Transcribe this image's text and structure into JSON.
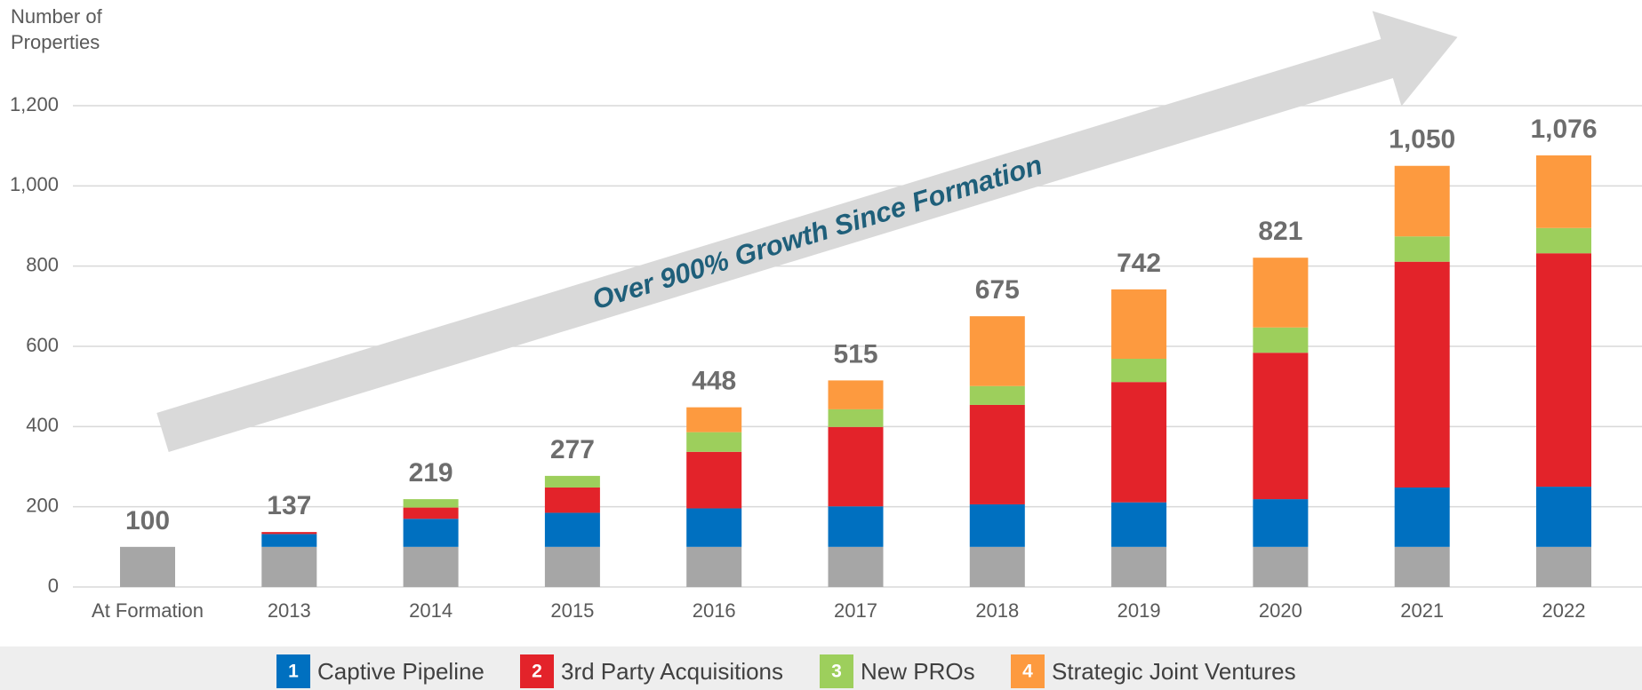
{
  "chart_data": {
    "type": "stacked_bar",
    "y_axis_label": "Number of Properties",
    "annotation": "Over 900% Growth Since Formation",
    "categories": [
      "At Formation",
      "2013",
      "2014",
      "2015",
      "2016",
      "2017",
      "2018",
      "2019",
      "2020",
      "2021",
      "2022"
    ],
    "series": [
      {
        "color": "#a6a6a6",
        "values": [
          100,
          100,
          100,
          100,
          100,
          100,
          100,
          100,
          100,
          100,
          100
        ]
      },
      {
        "name": "Captive Pipeline",
        "badge": "1",
        "color": "#0070c0",
        "values": [
          0,
          32,
          70,
          85,
          96,
          101,
          106,
          111,
          119,
          148,
          150
        ]
      },
      {
        "name": "3rd Party Acquisitions",
        "badge": "2",
        "color": "#e3232a",
        "values": [
          0,
          5,
          28,
          63,
          141,
          198,
          248,
          300,
          365,
          563,
          582
        ]
      },
      {
        "name": "New PROs",
        "badge": "3",
        "color": "#9dcf5c",
        "values": [
          0,
          0,
          21,
          29,
          49,
          44,
          47,
          58,
          63,
          63,
          63
        ]
      },
      {
        "name": "Strategic Joint Ventures",
        "badge": "4",
        "color": "#fd9a3f",
        "values": [
          0,
          0,
          0,
          0,
          62,
          72,
          174,
          173,
          174,
          176,
          181
        ]
      }
    ],
    "totals": [
      100,
      137,
      219,
      277,
      448,
      515,
      675,
      742,
      821,
      1050,
      1076
    ],
    "total_labels": [
      "100",
      "137",
      "219",
      "277",
      "448",
      "515",
      "675",
      "742",
      "821",
      "1,050",
      "1,076"
    ],
    "ylim": [
      0,
      1250
    ],
    "yticks": [
      0,
      {
        "value": 200,
        "label": "200"
      },
      400,
      600,
      800,
      {
        "value": 1000,
        "label": "1,000"
      },
      {
        "value": 1200,
        "label": "1,200"
      }
    ],
    "grid": true
  }
}
